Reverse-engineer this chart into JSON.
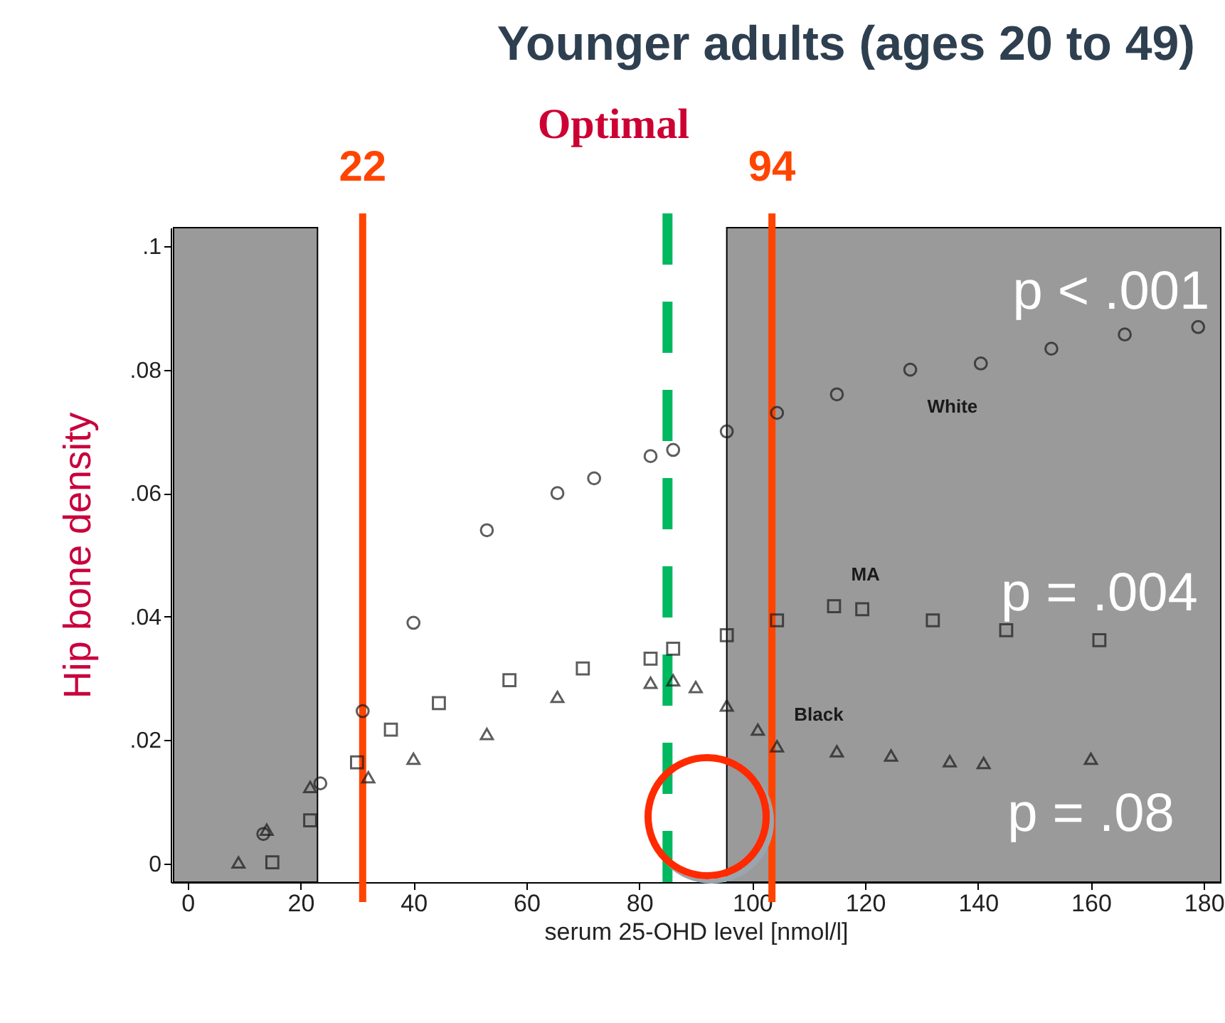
{
  "chart_data": {
    "type": "scatter",
    "title": "Younger adults (ages 20 to 49)",
    "xlabel": "serum 25-OHD level [nmol/l]",
    "ylabel": "Hip bone density",
    "xlim": [
      -3,
      183
    ],
    "ylim": [
      -0.003,
      0.103
    ],
    "xticks": [
      0,
      20,
      40,
      60,
      80,
      100,
      120,
      140,
      160,
      180
    ],
    "yticks": [
      {
        "value": 0,
        "label": "0"
      },
      {
        "value": 0.02,
        "label": ".02"
      },
      {
        "value": 0.04,
        "label": ".04"
      },
      {
        "value": 0.06,
        "label": ".06"
      },
      {
        "value": 0.08,
        "label": ".08"
      },
      {
        "value": 0.1,
        "label": ".1"
      }
    ],
    "grid": false,
    "legend": false,
    "series": [
      {
        "name": "White",
        "color": "#1a1a1a",
        "marker": "circle",
        "x": [
          13.4,
          23.5,
          31,
          40,
          53,
          65.5,
          72,
          82,
          86,
          95.5,
          104.4,
          115,
          128,
          140.5,
          153,
          166,
          179
        ],
        "values": [
          0.0048,
          0.013,
          0.0247,
          0.039,
          0.054,
          0.06,
          0.0624,
          0.066,
          0.067,
          0.07,
          0.073,
          0.076,
          0.08,
          0.081,
          0.0834,
          0.0857,
          0.0869
        ]
      },
      {
        "name": "MA",
        "color": "#1a1a1a",
        "marker": "square",
        "x": [
          15,
          21.7,
          30,
          36,
          44.5,
          57,
          70,
          82,
          86,
          95.5,
          104.4,
          114.5,
          119.5,
          132,
          145,
          161.5
        ],
        "values": [
          0.0002,
          0.007,
          0.0164,
          0.0217,
          0.026,
          0.0297,
          0.0316,
          0.0332,
          0.0348,
          0.037,
          0.0394,
          0.0417,
          0.0412,
          0.0394,
          0.0378,
          0.0362
        ]
      },
      {
        "name": "Black",
        "color": "#1a1a1a",
        "marker": "triangle",
        "x": [
          9,
          14,
          21.7,
          32,
          40,
          53,
          65.5,
          82,
          86,
          90,
          95.5,
          101,
          104.4,
          115,
          124.6,
          135,
          141,
          160
        ],
        "values": [
          0.0002,
          0.0055,
          0.0124,
          0.014,
          0.017,
          0.021,
          0.027,
          0.0293,
          0.0297,
          0.0286,
          0.0256,
          0.0217,
          0.019,
          0.0182,
          0.0175,
          0.0166,
          0.0163,
          0.017
        ]
      }
    ],
    "bands": [
      {
        "axis": "x",
        "from": -2.5,
        "to": 23,
        "color": "#9a9a9a"
      },
      {
        "axis": "x",
        "from": 95.5,
        "to": 183,
        "color": "#9a9a9a"
      }
    ],
    "ref_lines": [
      {
        "axis": "x",
        "value": 31,
        "color": "#ff4400"
      },
      {
        "axis": "x",
        "value": 103.5,
        "color": "#ff4400"
      },
      {
        "axis": "x",
        "value": 85,
        "label": "Optimal",
        "color": "#00b860",
        "line_style": "dashed"
      }
    ],
    "annotations": [
      "p < .001",
      "p = .004",
      "p = .08",
      "22",
      "94"
    ]
  }
}
